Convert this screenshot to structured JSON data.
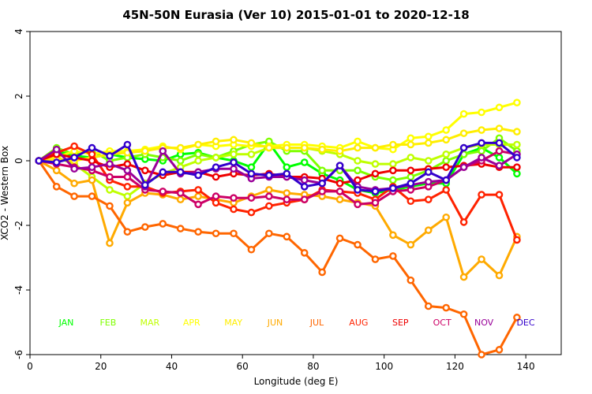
{
  "chart_data": {
    "type": "line",
    "title": "45N-50N Eurasia (Ver 10)   2015-01-01 to 2020-12-18",
    "xlabel": "Longitude (deg E)",
    "ylabel": "XCO2 - Western Box",
    "xlim": [
      0,
      150
    ],
    "ylim": [
      -6,
      4
    ],
    "xticks": [
      "0",
      "20",
      "40",
      "60",
      "80",
      "100",
      "120",
      "140"
    ],
    "yticks": [
      "-6",
      "-4",
      "-2",
      "0",
      "2",
      "4"
    ],
    "x": [
      2.5,
      7.5,
      12.5,
      17.5,
      22.5,
      27.5,
      32.5,
      37.5,
      42.5,
      47.5,
      52.5,
      57.5,
      62.5,
      67.5,
      72.5,
      77.5,
      82.5,
      87.5,
      92.5,
      97.5,
      102.5,
      107.5,
      112.5,
      117.5,
      122.5,
      127.5,
      132.5,
      137.5
    ],
    "grid": false,
    "legend": "bottom, inline month labels",
    "series": [
      {
        "name": "JAN",
        "color": "#00ff00",
        "values": [
          0,
          0.3,
          0.15,
          0.1,
          0.2,
          0.1,
          0.05,
          0,
          0.2,
          0.25,
          0.1,
          0.0,
          -0.2,
          0.55,
          -0.2,
          -0.05,
          -0.4,
          -0.6,
          -0.9,
          -1.0,
          -0.9,
          -0.8,
          -0.7,
          -0.7,
          0.2,
          0.4,
          0.1,
          -0.4
        ]
      },
      {
        "name": "FEB",
        "color": "#7fff00",
        "values": [
          0,
          0.4,
          0.2,
          0.3,
          0.0,
          0.1,
          0.2,
          0.1,
          0.0,
          0.2,
          0.1,
          0.3,
          0.5,
          0.6,
          0.3,
          0.3,
          -0.3,
          -0.3,
          -0.3,
          -0.5,
          -0.6,
          -0.5,
          -0.3,
          0.0,
          0.2,
          0.3,
          0.7,
          0.3
        ]
      },
      {
        "name": "MAR",
        "color": "#bfff00",
        "values": [
          0,
          0.1,
          -0.1,
          -0.5,
          -0.9,
          -1.1,
          -0.7,
          -0.4,
          -0.2,
          0.0,
          0.1,
          0.2,
          0.2,
          0.4,
          0.4,
          0.4,
          0.3,
          0.2,
          0.0,
          -0.1,
          -0.1,
          0.1,
          0.0,
          0.2,
          0.4,
          0.5,
          0.5,
          0.5
        ]
      },
      {
        "name": "APR",
        "color": "#ffff00",
        "values": [
          0,
          0.1,
          0.3,
          0.2,
          0.3,
          0.3,
          0.35,
          0.45,
          0.35,
          0.5,
          0.45,
          0.5,
          0.45,
          0.45,
          0.5,
          0.5,
          0.45,
          0.4,
          0.6,
          0.4,
          0.35,
          0.7,
          0.75,
          0.95,
          1.45,
          1.5,
          1.65,
          1.8
        ]
      },
      {
        "name": "MAY",
        "color": "#ffee00",
        "values": [
          0,
          0.05,
          0.0,
          0.1,
          0.2,
          0.25,
          0.3,
          0.4,
          0.4,
          0.5,
          0.6,
          0.65,
          0.55,
          0.4,
          0.4,
          0.4,
          0.35,
          0.3,
          0.4,
          0.4,
          0.5,
          0.5,
          0.55,
          0.65,
          0.85,
          0.95,
          1.0,
          0.9
        ]
      },
      {
        "name": "JUN",
        "color": "#ffaa00",
        "values": [
          0,
          -0.3,
          -0.7,
          -0.6,
          -2.55,
          -1.3,
          -1.0,
          -1.05,
          -1.2,
          -1.1,
          -1.2,
          -1.3,
          -1.1,
          -0.9,
          -1.0,
          -1.05,
          -1.1,
          -1.2,
          -1.3,
          -1.4,
          -2.3,
          -2.6,
          -2.15,
          -1.75,
          -3.6,
          -3.05,
          -3.55,
          -2.35
        ]
      },
      {
        "name": "JUL",
        "color": "#ff6600",
        "values": [
          0,
          -0.8,
          -1.1,
          -1.1,
          -1.4,
          -2.2,
          -2.05,
          -1.95,
          -2.1,
          -2.2,
          -2.25,
          -2.25,
          -2.75,
          -2.25,
          -2.35,
          -2.85,
          -3.45,
          -2.4,
          -2.6,
          -3.05,
          -2.95,
          -3.7,
          -4.5,
          -4.55,
          -4.75,
          -6.0,
          -5.85,
          -4.85
        ]
      },
      {
        "name": "AUG",
        "color": "#ff2200",
        "values": [
          0,
          0.25,
          0.45,
          0.2,
          -0.6,
          -0.8,
          -0.8,
          -1.0,
          -0.95,
          -0.9,
          -1.3,
          -1.5,
          -1.6,
          -1.4,
          -1.3,
          -1.2,
          -0.9,
          -0.95,
          -1.0,
          -1.2,
          -0.8,
          -1.25,
          -1.2,
          -0.9,
          -1.9,
          -1.05,
          -1.05,
          -2.45
        ]
      },
      {
        "name": "SEP",
        "color": "#ee0000",
        "values": [
          0,
          0.2,
          0.1,
          0.0,
          -0.2,
          -0.1,
          -0.3,
          -0.45,
          -0.35,
          -0.35,
          -0.5,
          -0.4,
          -0.45,
          -0.4,
          -0.5,
          -0.5,
          -0.55,
          -0.7,
          -0.6,
          -0.4,
          -0.3,
          -0.3,
          -0.25,
          -0.2,
          -0.15,
          -0.1,
          -0.2,
          -0.2
        ]
      },
      {
        "name": "OCT",
        "color": "#cc0066",
        "values": [
          0,
          -0.1,
          -0.2,
          -0.3,
          -0.5,
          -0.5,
          -0.9,
          -0.95,
          -1.0,
          -1.35,
          -1.1,
          -1.15,
          -1.15,
          -1.1,
          -1.2,
          -1.2,
          -0.95,
          -0.95,
          -1.35,
          -1.3,
          -0.95,
          -0.9,
          -0.8,
          -0.6,
          -0.2,
          0.0,
          0.3,
          0.2
        ]
      },
      {
        "name": "NOV",
        "color": "#990099",
        "values": [
          0,
          0.35,
          -0.25,
          -0.2,
          -0.1,
          -0.3,
          -0.8,
          0.3,
          -0.4,
          -0.35,
          -0.25,
          -0.25,
          -0.55,
          -0.5,
          -0.5,
          -0.6,
          -0.7,
          -0.15,
          -0.8,
          -0.9,
          -0.85,
          -0.75,
          -0.65,
          -0.6,
          -0.2,
          0.1,
          -0.15,
          0.2
        ]
      },
      {
        "name": "DEC",
        "color": "#3300cc",
        "values": [
          0,
          -0.05,
          0.1,
          0.4,
          0.15,
          0.5,
          -0.75,
          -0.35,
          -0.35,
          -0.45,
          -0.2,
          -0.05,
          -0.4,
          -0.45,
          -0.4,
          -0.8,
          -0.7,
          -0.15,
          -0.9,
          -0.95,
          -0.85,
          -0.7,
          -0.35,
          -0.6,
          0.4,
          0.55,
          0.55,
          0.1
        ]
      }
    ]
  }
}
